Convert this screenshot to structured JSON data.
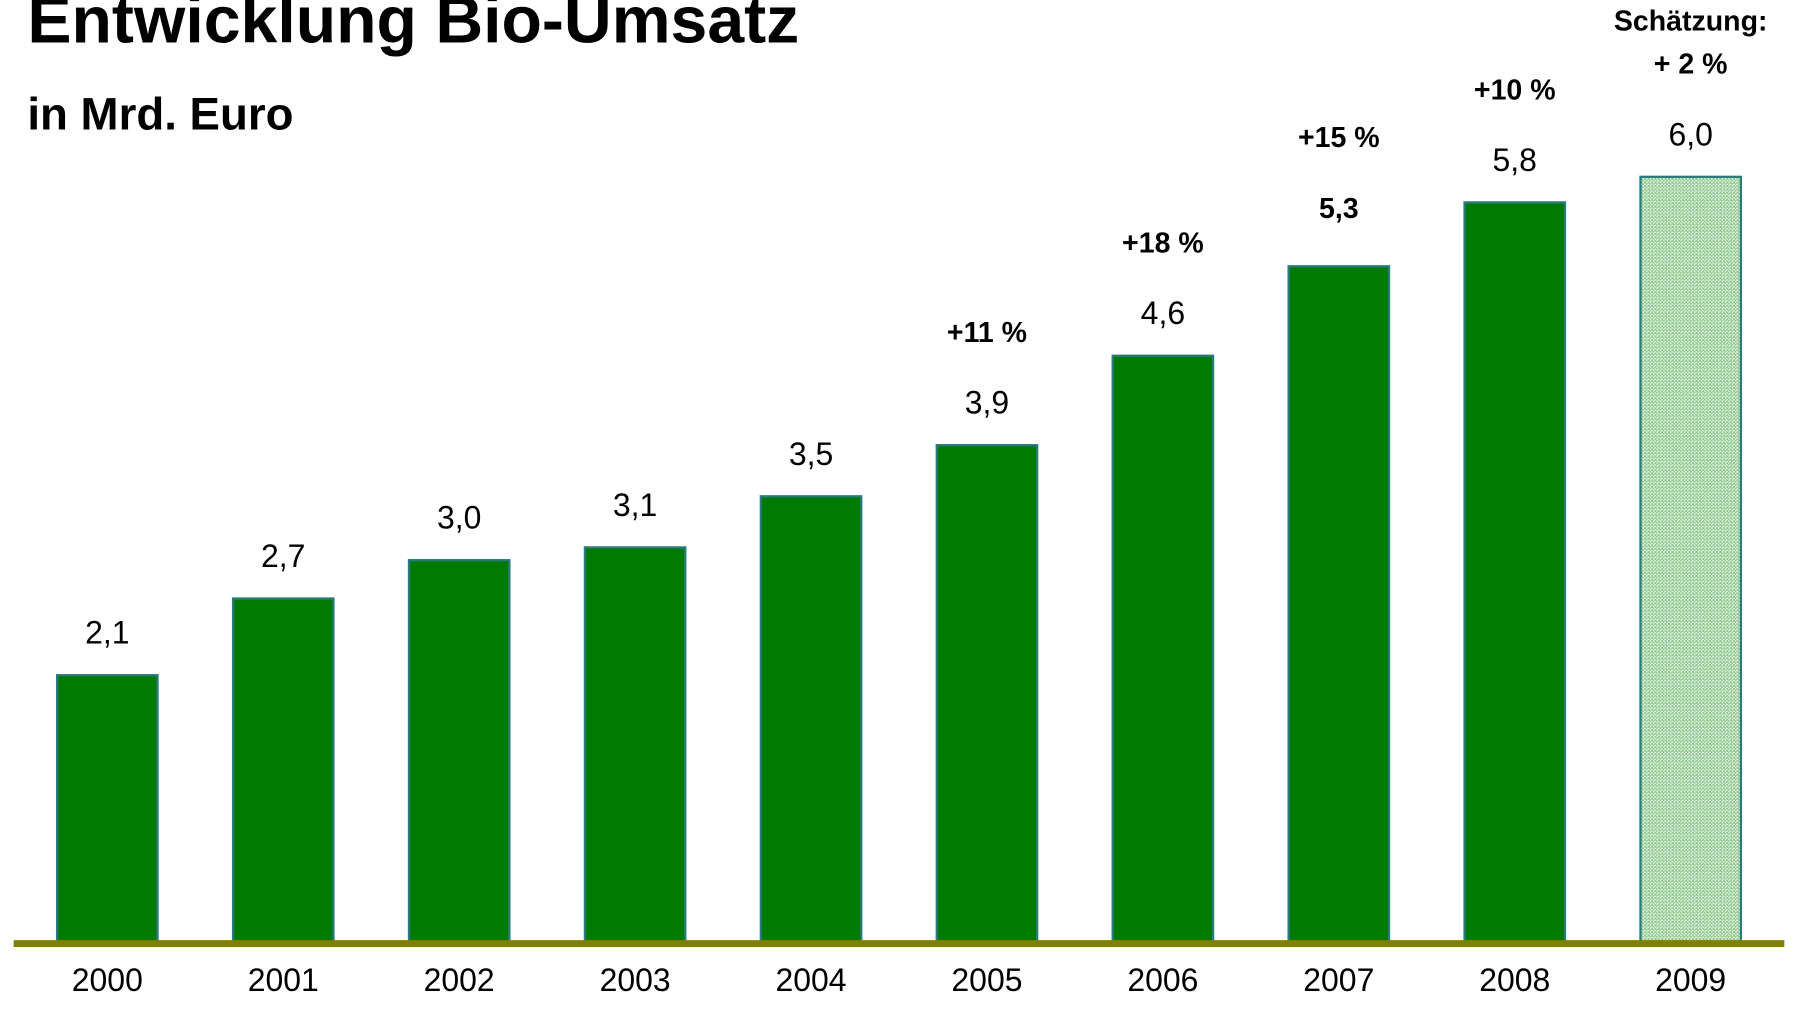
{
  "chart_data": {
    "type": "bar",
    "title": "Entwicklung Bio-Umsatz",
    "subtitle": "in Mrd. Euro",
    "categories": [
      "2000",
      "2001",
      "2002",
      "2003",
      "2004",
      "2005",
      "2006",
      "2007",
      "2008",
      "2009"
    ],
    "values": [
      2.1,
      2.7,
      3.0,
      3.1,
      3.5,
      3.9,
      4.6,
      5.3,
      5.8,
      6.0
    ],
    "value_labels": [
      "2,1",
      "2,7",
      "3,0",
      "3,1",
      "3,5",
      "3,9",
      "4,6",
      "5,3",
      "5,8",
      "6,0"
    ],
    "value_label_bold": [
      "2007"
    ],
    "color": "#007a00",
    "hatched_categories": [
      "2009"
    ],
    "hatch_color": "#8cc88c",
    "baseline_color": "#808000",
    "ylim": [
      0,
      7
    ],
    "annotations": [
      {
        "category": "2005",
        "lines": [
          "+11 %"
        ]
      },
      {
        "category": "2006",
        "lines": [
          "+18 %"
        ]
      },
      {
        "category": "2007",
        "lines": [
          "+15 %"
        ]
      },
      {
        "category": "2008",
        "lines": [
          "+10 %"
        ]
      },
      {
        "category": "2009",
        "lines": [
          "Schätzung:",
          "+ 2 %"
        ]
      }
    ]
  }
}
